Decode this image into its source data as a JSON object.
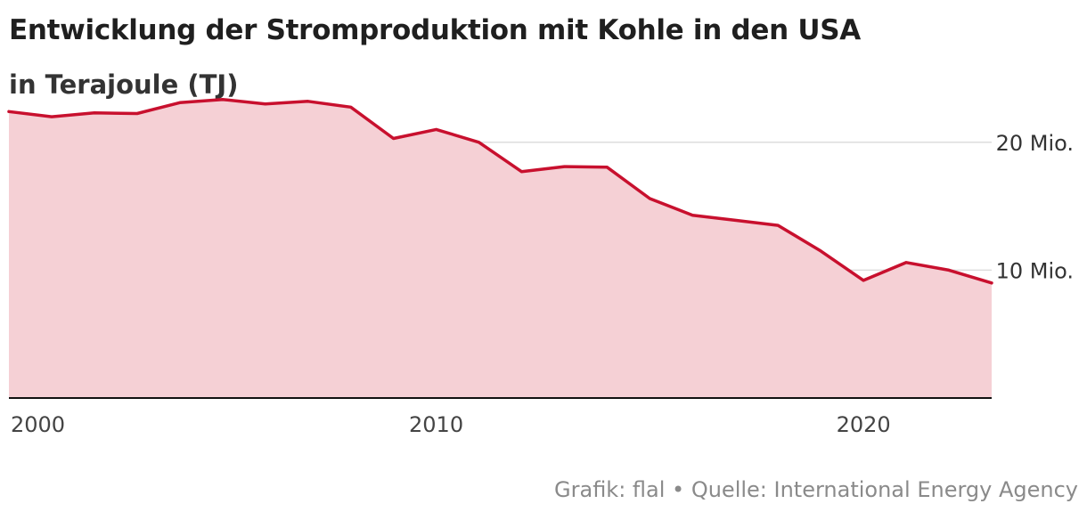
{
  "header": {
    "title": "Entwicklung der Stromproduktion mit Kohle in den USA",
    "subtitle": "in Terajoule (TJ)"
  },
  "footer": {
    "source": "Grafik: flal • Quelle: International Energy Agency"
  },
  "colors": {
    "line": "#c8102e",
    "area": "#f5d0d5",
    "grid": "#dddddd",
    "baseline": "#111111"
  },
  "chart_data": {
    "type": "area",
    "title": "Entwicklung der Stromproduktion mit Kohle in den USA",
    "subtitle": "in Terajoule (TJ)",
    "x": [
      2000,
      2001,
      2002,
      2003,
      2004,
      2005,
      2006,
      2007,
      2008,
      2009,
      2010,
      2011,
      2012,
      2013,
      2014,
      2015,
      2016,
      2017,
      2018,
      2019,
      2020,
      2021,
      2022,
      2023
    ],
    "series": [
      {
        "values": [
          22.4,
          22.0,
          22.3,
          22.25,
          23.1,
          23.35,
          23.0,
          23.2,
          22.75,
          20.3,
          21.0,
          20.0,
          17.7,
          18.1,
          18.05,
          15.6,
          14.3,
          13.9,
          13.5,
          11.5,
          9.2,
          10.6,
          10.0,
          9.0
        ]
      }
    ],
    "ylim": [
      0,
      25
    ],
    "xlim": [
      2000,
      2023
    ],
    "yticks": [
      {
        "value": 10,
        "label": "10 Mio."
      },
      {
        "value": 20,
        "label": "20 Mio."
      }
    ],
    "xticks": [
      {
        "value": 2000,
        "label": "2000"
      },
      {
        "value": 2010,
        "label": "2010"
      },
      {
        "value": 2020,
        "label": "2020"
      }
    ],
    "grid": true,
    "ytick_side": "right",
    "legend": "none"
  }
}
